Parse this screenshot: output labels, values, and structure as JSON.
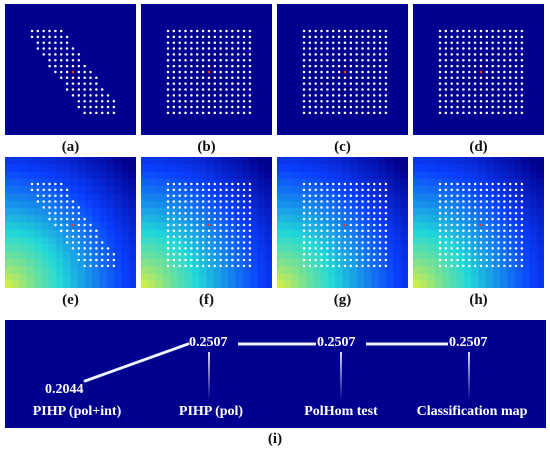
{
  "colors": {
    "background_blue": "#02008f",
    "dot": "#ffffff",
    "center_dot": "#ff3030",
    "gradient_bottom_left": "#e6ef3a",
    "gradient_mid": "#22d8d8",
    "gradient_upper": "#0a40ff"
  },
  "panels": [
    {
      "caption": "(a)",
      "background": "solid-blue",
      "mask": "diagonal-band"
    },
    {
      "caption": "(b)",
      "background": "solid-blue",
      "mask": "full-grid"
    },
    {
      "caption": "(c)",
      "background": "solid-blue",
      "mask": "full-grid"
    },
    {
      "caption": "(d)",
      "background": "solid-blue",
      "mask": "full-grid"
    },
    {
      "caption": "(e)",
      "background": "gradient",
      "mask": "diagonal-band"
    },
    {
      "caption": "(f)",
      "background": "gradient",
      "mask": "full-grid"
    },
    {
      "caption": "(g)",
      "background": "gradient",
      "mask": "full-grid"
    },
    {
      "caption": "(h)",
      "background": "gradient",
      "mask": "full-grid"
    }
  ],
  "bottom_panel": {
    "caption": "(i)",
    "stages": [
      {
        "label": "PIHP (pol+int)",
        "value": "0.2044"
      },
      {
        "label": "PIHP (pol)",
        "value": "0.2507"
      },
      {
        "label": "PolHom test",
        "value": "0.2507"
      },
      {
        "label": "Classification map",
        "value": "0.2507"
      }
    ]
  }
}
